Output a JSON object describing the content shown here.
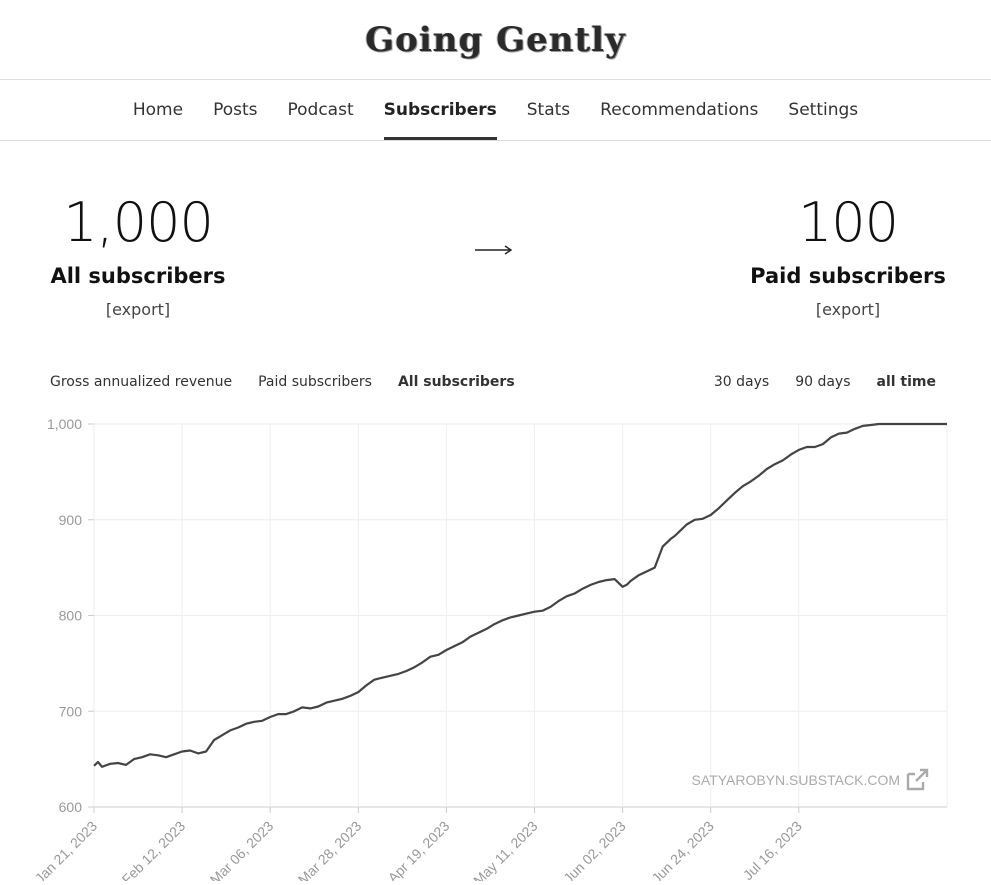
{
  "brand": {
    "title": "Going Gently"
  },
  "nav": {
    "items": [
      {
        "label": "Home",
        "active": false
      },
      {
        "label": "Posts",
        "active": false
      },
      {
        "label": "Podcast",
        "active": false
      },
      {
        "label": "Subscribers",
        "active": true
      },
      {
        "label": "Stats",
        "active": false
      },
      {
        "label": "Recommendations",
        "active": false
      },
      {
        "label": "Settings",
        "active": false
      }
    ]
  },
  "stats": {
    "all": {
      "number": "1,000",
      "label": "All subscribers",
      "export": "[export]"
    },
    "paid": {
      "number": "100",
      "label": "Paid subscribers",
      "export": "[export]"
    }
  },
  "chart_tabs": [
    {
      "label": "Gross annualized revenue",
      "active": false
    },
    {
      "label": "Paid subscribers",
      "active": false
    },
    {
      "label": "All subscribers",
      "active": true
    }
  ],
  "ranges": [
    {
      "label": "30 days",
      "active": false
    },
    {
      "label": "90 days",
      "active": false
    },
    {
      "label": "all time",
      "active": true
    }
  ],
  "colors": {
    "line": "#444444",
    "grid": "#eeeeee",
    "axis": "#999999"
  },
  "chart_data": {
    "type": "line",
    "title": "",
    "xlabel": "",
    "ylabel": "",
    "ylim": [
      600,
      1000
    ],
    "yticks": [
      600,
      700,
      800,
      900,
      1000
    ],
    "ytick_labels": [
      "600",
      "700",
      "800",
      "900",
      "1,000"
    ],
    "xlim": [
      0,
      213
    ],
    "xticks": [
      0,
      22,
      44,
      66,
      88,
      110,
      132,
      154,
      176
    ],
    "xtick_labels": [
      "Jan 21, 2023",
      "Feb 12, 2023",
      "Mar 06, 2023",
      "Mar 28, 2023",
      "Apr 19, 2023",
      "May 11, 2023",
      "Jun 02, 2023",
      "Jun 24, 2023",
      "Jul 16, 2023"
    ],
    "watermark": "SATYAROBYN.SUBSTACK.COM",
    "series": [
      {
        "name": "All subscribers",
        "x": [
          0,
          1,
          2,
          4,
          6,
          8,
          10,
          12,
          14,
          16,
          18,
          20,
          22,
          24,
          26,
          28,
          30,
          32,
          34,
          36,
          38,
          40,
          42,
          44,
          46,
          48,
          50,
          52,
          54,
          56,
          58,
          60,
          62,
          64,
          66,
          68,
          70,
          72,
          74,
          76,
          78,
          80,
          82,
          84,
          86,
          88,
          90,
          92,
          94,
          96,
          98,
          100,
          102,
          104,
          106,
          108,
          110,
          112,
          114,
          116,
          118,
          120,
          122,
          124,
          126,
          128,
          130,
          132,
          133,
          134,
          136,
          138,
          140,
          142,
          144,
          145,
          146,
          148,
          150,
          152,
          154,
          156,
          158,
          160,
          162,
          164,
          166,
          168,
          170,
          172,
          174,
          176,
          178,
          180,
          182,
          184,
          186,
          188,
          190,
          192,
          194,
          196,
          198,
          200,
          202,
          204,
          206,
          208,
          210,
          212,
          213
        ],
        "values": [
          643,
          647,
          642,
          645,
          646,
          644,
          650,
          652,
          655,
          654,
          652,
          655,
          658,
          659,
          656,
          658,
          670,
          675,
          680,
          683,
          687,
          689,
          690,
          694,
          697,
          697,
          700,
          704,
          703,
          705,
          709,
          711,
          713,
          716,
          720,
          727,
          733,
          735,
          737,
          739,
          742,
          746,
          751,
          757,
          759,
          764,
          768,
          772,
          778,
          782,
          786,
          791,
          795,
          798,
          800,
          802,
          804,
          805,
          809,
          815,
          820,
          823,
          828,
          832,
          835,
          837,
          838,
          830,
          832,
          836,
          842,
          846,
          850,
          872,
          880,
          883,
          887,
          895,
          900,
          901,
          905,
          912,
          920,
          928,
          935,
          940,
          946,
          953,
          958,
          962,
          968,
          973,
          976,
          976,
          979,
          986,
          990,
          991,
          995,
          998,
          999,
          1000,
          1000,
          1000,
          1000,
          1000,
          1000,
          1000,
          1000,
          1000,
          1000
        ]
      }
    ]
  }
}
